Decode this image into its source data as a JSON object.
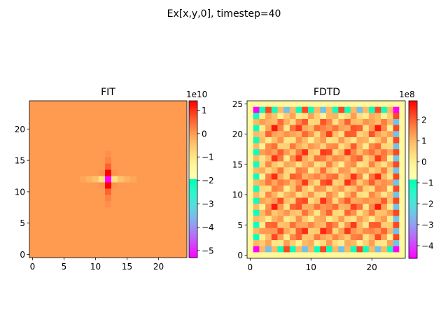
{
  "figure_title": "Ex[x,y,0], timestep=40",
  "chart_data": [
    {
      "type": "heatmap",
      "title": "FIT",
      "grid_size": [
        25,
        25
      ],
      "colormap": "rainbow",
      "xlim": [
        -0.5,
        24.5
      ],
      "ylim": [
        24.5,
        -0.5
      ],
      "x_ticks": [
        0,
        5,
        10,
        15,
        20
      ],
      "y_ticks": [
        0,
        5,
        10,
        15,
        20
      ],
      "x_tick_labels": [
        "0",
        "5",
        "10",
        "15",
        "20"
      ],
      "y_tick_labels": [
        "0",
        "5",
        "10",
        "15",
        "20"
      ],
      "colorbar": {
        "vmin": -5.3,
        "vmax": 1.4,
        "ticks": [
          1,
          0,
          -1,
          -2,
          -3,
          -4,
          -5
        ],
        "tick_labels": [
          "1",
          "0",
          "−1",
          "−2",
          "−3",
          "−4",
          "−5"
        ],
        "offset_label": "1e10"
      },
      "values_description_note": null,
      "background_value": 0.02,
      "cells": [
        {
          "x": 12,
          "y": 12,
          "v": -5.3
        },
        {
          "x": 12,
          "y": 11,
          "v": 1.4
        },
        {
          "x": 12,
          "y": 13,
          "v": 1.4
        },
        {
          "x": 12,
          "y": 10,
          "v": 0.55
        },
        {
          "x": 12,
          "y": 14,
          "v": 0.55
        },
        {
          "x": 12,
          "y": 9,
          "v": 0.25
        },
        {
          "x": 12,
          "y": 15,
          "v": 0.25
        },
        {
          "x": 12,
          "y": 8,
          "v": 0.12
        },
        {
          "x": 12,
          "y": 16,
          "v": 0.12
        },
        {
          "x": 11,
          "y": 12,
          "v": -0.9
        },
        {
          "x": 13,
          "y": 12,
          "v": -0.9
        },
        {
          "x": 10,
          "y": 12,
          "v": -0.45
        },
        {
          "x": 14,
          "y": 12,
          "v": -0.45
        },
        {
          "x": 9,
          "y": 12,
          "v": -0.25
        },
        {
          "x": 15,
          "y": 12,
          "v": -0.25
        },
        {
          "x": 8,
          "y": 12,
          "v": -0.12
        },
        {
          "x": 16,
          "y": 12,
          "v": -0.12
        },
        {
          "x": 11,
          "y": 11,
          "v": 0.1
        },
        {
          "x": 13,
          "y": 11,
          "v": 0.1
        },
        {
          "x": 11,
          "y": 13,
          "v": 0.1
        },
        {
          "x": 13,
          "y": 13,
          "v": 0.1
        }
      ]
    },
    {
      "type": "heatmap",
      "title": "FDTD",
      "grid_size": [
        26,
        26
      ],
      "colormap": "rainbow",
      "xlim": [
        -0.5,
        25.5
      ],
      "ylim": [
        25.5,
        -0.5
      ],
      "x_ticks": [
        0,
        10,
        20
      ],
      "y_ticks": [
        0,
        5,
        10,
        15,
        20,
        25
      ],
      "x_tick_labels": [
        "0",
        "10",
        "20"
      ],
      "y_tick_labels": [
        "0",
        "5",
        "10",
        "15",
        "20",
        "25"
      ],
      "colorbar": {
        "vmin": -4.6,
        "vmax": 2.9,
        "ticks": [
          2,
          1,
          0,
          -1,
          -2,
          -3,
          -4
        ],
        "tick_labels": [
          "2",
          "1",
          "0",
          "−1",
          "−2",
          "−3",
          "−4"
        ],
        "offset_label": "1e8"
      },
      "border_value": -0.3,
      "corner_value": -4.6,
      "interior_values_summary": "checkerboard pattern of values roughly between -2 and 2.9 with strongest positive cells near (9,9),(17,9),(9,16),(17,16)"
    }
  ]
}
